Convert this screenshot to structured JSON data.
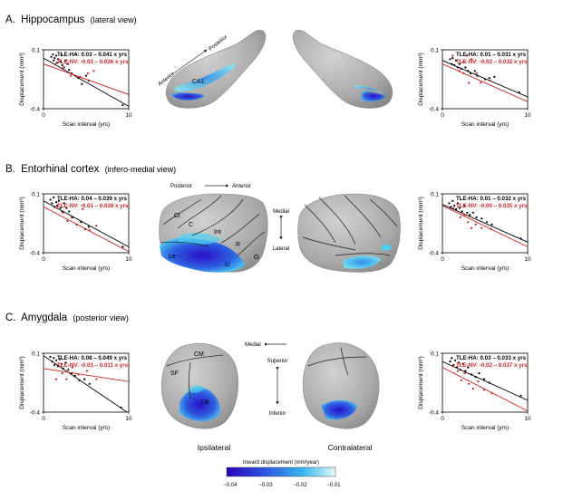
{
  "panels": [
    {
      "letter": "A.",
      "title": "Hippocampus",
      "view": "(lateral view)"
    },
    {
      "letter": "B.",
      "title": "Entorhinal cortex",
      "view": "(infero-medial view)"
    },
    {
      "letter": "C.",
      "title": "Amygdala",
      "view": "(posterior view)"
    }
  ],
  "axes": {
    "ylabel": "Displacement  (mm³)",
    "xlabel": "Scan interval (yrs)"
  },
  "colors": {
    "ha": "#000000",
    "nv": "#d42020"
  },
  "annotations": {
    "hippo_anterior": "Anterior",
    "hippo_posterior": "Posterior",
    "hippo_ca1": "CA1",
    "ent_posterior": "Posterior",
    "ent_anterior": "Anterior",
    "ent_medial": "Medial",
    "ent_lateral": "Lateral",
    "ent_cl": "Cl",
    "ent_c": "C",
    "ent_int": "Int",
    "ent_r": "R",
    "ent_o": "O",
    "ent_le": "Le",
    "ent_li": "Li",
    "amy_medial": "Medial",
    "amy_superior": "Superior",
    "amy_inferior": "Inferior",
    "amy_cm": "CM",
    "amy_sf": "SF",
    "amy_lb": "LB",
    "ipsilateral": "Ipsilateral",
    "contralateral": "Contralateral"
  },
  "colorbar": {
    "title": "Inward displacement (mm/year)",
    "ticks": [
      "−0.04",
      "−0.03",
      "−0.02",
      "−0.01"
    ]
  },
  "chart_data": [
    {
      "type": "scatter",
      "panel": "A",
      "side": "left",
      "xlim": [
        0,
        10
      ],
      "ylim": [
        -0.4,
        0.1
      ],
      "xticks": [
        "0",
        "10"
      ],
      "yticks": [
        "0.1",
        "-0.4"
      ],
      "series": [
        {
          "name": "TLE-HA: 0.03 – 0.041 x yrs",
          "intercept": 0.03,
          "slope": -0.041,
          "points": [
            [
              0.9,
              0.04
            ],
            [
              1.1,
              0.06
            ],
            [
              1.2,
              0.01
            ],
            [
              1.3,
              0.03
            ],
            [
              1.5,
              0.05
            ],
            [
              1.6,
              -0.01
            ],
            [
              1.7,
              0.02
            ],
            [
              2.0,
              0.0
            ],
            [
              2.1,
              0.06
            ],
            [
              2.2,
              -0.03
            ],
            [
              2.4,
              -0.05
            ],
            [
              2.6,
              0.01
            ],
            [
              2.8,
              -0.02
            ],
            [
              3.0,
              -0.07
            ],
            [
              3.3,
              -0.1
            ],
            [
              4.1,
              -0.14
            ],
            [
              4.5,
              -0.19
            ],
            [
              5.0,
              -0.12
            ],
            [
              5.3,
              -0.16
            ],
            [
              9.3,
              -0.37
            ]
          ]
        },
        {
          "name": "TLE-NV: -0.02 – 0.026 x yrs",
          "intercept": -0.02,
          "slope": -0.026,
          "points": [
            [
              1.4,
              -0.02
            ],
            [
              2.3,
              -0.05
            ],
            [
              2.9,
              -0.02
            ],
            [
              3.2,
              -0.12
            ],
            [
              3.8,
              0.06
            ],
            [
              4.3,
              -0.13
            ],
            [
              5.2,
              -0.1
            ],
            [
              5.9,
              -0.08
            ]
          ]
        }
      ]
    },
    {
      "type": "scatter",
      "panel": "A",
      "side": "right",
      "xlim": [
        0,
        10
      ],
      "ylim": [
        -0.4,
        0.1
      ],
      "xticks": [
        "0",
        "10"
      ],
      "yticks": [
        "0.1",
        "-0.4"
      ],
      "series": [
        {
          "name": "TLE-HA: 0.01 – 0.031 x yrs",
          "intercept": 0.01,
          "slope": -0.031,
          "points": [
            [
              0.9,
              0.02
            ],
            [
              1.1,
              -0.02
            ],
            [
              1.2,
              0.03
            ],
            [
              1.4,
              -0.03
            ],
            [
              1.6,
              0.01
            ],
            [
              1.8,
              -0.05
            ],
            [
              2.0,
              -0.02
            ],
            [
              2.2,
              -0.06
            ],
            [
              2.5,
              0.0
            ],
            [
              2.7,
              -0.05
            ],
            [
              3.0,
              -0.08
            ],
            [
              3.3,
              -0.1
            ],
            [
              3.8,
              -0.08
            ],
            [
              4.1,
              -0.12
            ],
            [
              5.0,
              -0.15
            ],
            [
              5.5,
              -0.14
            ],
            [
              6.1,
              -0.13
            ],
            [
              9.0,
              -0.26
            ]
          ]
        },
        {
          "name": "TLE-NV: -0.02 – 0.032 x yrs",
          "intercept": -0.02,
          "slope": -0.032,
          "points": [
            [
              1.2,
              0.05
            ],
            [
              2.0,
              -0.08
            ],
            [
              2.5,
              -0.1
            ],
            [
              2.9,
              0.05
            ],
            [
              3.1,
              -0.18
            ],
            [
              3.4,
              0.02
            ],
            [
              4.0,
              -0.1
            ],
            [
              4.5,
              -0.18
            ],
            [
              5.6,
              -0.16
            ]
          ]
        }
      ]
    },
    {
      "type": "scatter",
      "panel": "B",
      "side": "left",
      "xlim": [
        0,
        10
      ],
      "ylim": [
        -0.4,
        0.1
      ],
      "xticks": [
        "0",
        "10"
      ],
      "yticks": [
        "0.1",
        "-0.4"
      ],
      "series": [
        {
          "name": "TLE-HA: 0.04 – 0.039 x yrs",
          "intercept": 0.04,
          "slope": -0.039,
          "points": [
            [
              0.8,
              0.05
            ],
            [
              1.0,
              0.02
            ],
            [
              1.2,
              0.07
            ],
            [
              1.3,
              -0.01
            ],
            [
              1.5,
              0.03
            ],
            [
              1.6,
              0.0
            ],
            [
              1.8,
              0.04
            ],
            [
              2.0,
              -0.02
            ],
            [
              2.2,
              -0.05
            ],
            [
              2.4,
              0.02
            ],
            [
              2.7,
              -0.02
            ],
            [
              3.0,
              -0.05
            ],
            [
              3.4,
              -0.1
            ],
            [
              3.9,
              -0.16
            ],
            [
              4.4,
              -0.14
            ],
            [
              4.9,
              -0.2
            ],
            [
              5.3,
              -0.18
            ],
            [
              9.3,
              -0.35
            ]
          ]
        },
        {
          "name": "TLE-NV: -0.01 – 0.038 x yrs",
          "intercept": -0.01,
          "slope": -0.038,
          "points": [
            [
              1.6,
              -0.02
            ],
            [
              2.3,
              -0.06
            ],
            [
              2.8,
              -0.13
            ],
            [
              3.3,
              -0.1
            ],
            [
              4.6,
              -0.03
            ],
            [
              5.4,
              -0.21
            ],
            [
              6.2,
              -0.17
            ]
          ]
        }
      ]
    },
    {
      "type": "scatter",
      "panel": "B",
      "side": "right",
      "xlim": [
        0,
        10
      ],
      "ylim": [
        -0.4,
        0.1
      ],
      "xticks": [
        "0",
        "10"
      ],
      "yticks": [
        "0.1",
        "-0.4"
      ],
      "series": [
        {
          "name": "TLE-HA: 0.01 – 0.032 x yrs",
          "intercept": 0.01,
          "slope": -0.032,
          "points": [
            [
              0.8,
              0.02
            ],
            [
              1.0,
              -0.01
            ],
            [
              1.2,
              0.04
            ],
            [
              1.4,
              0.0
            ],
            [
              1.6,
              -0.03
            ],
            [
              1.8,
              0.02
            ],
            [
              2.0,
              -0.02
            ],
            [
              2.3,
              -0.05
            ],
            [
              2.6,
              0.0
            ],
            [
              2.9,
              -0.06
            ],
            [
              3.2,
              -0.08
            ],
            [
              3.6,
              -0.06
            ],
            [
              4.0,
              -0.1
            ],
            [
              4.6,
              -0.11
            ],
            [
              5.2,
              -0.14
            ],
            [
              5.8,
              -0.16
            ],
            [
              9.2,
              -0.28
            ]
          ]
        },
        {
          "name": "TLE-NV: -0.00 – 0.035 x yrs",
          "intercept": 0.0,
          "slope": -0.035,
          "points": [
            [
              1.3,
              -0.02
            ],
            [
              2.1,
              -0.1
            ],
            [
              2.6,
              -0.08
            ],
            [
              3.0,
              -0.14
            ],
            [
              3.4,
              -0.19
            ],
            [
              3.9,
              -0.16
            ],
            [
              4.6,
              -0.19
            ],
            [
              5.7,
              -0.2
            ]
          ]
        }
      ]
    },
    {
      "type": "scatter",
      "panel": "C",
      "side": "left",
      "xlim": [
        0,
        10
      ],
      "ylim": [
        -0.4,
        0.1
      ],
      "xticks": [
        "0",
        "10"
      ],
      "yticks": [
        "0.1",
        "-0.4"
      ],
      "series": [
        {
          "name": "TLE-HA: 0.08 – 0.049 x yrs",
          "intercept": 0.08,
          "slope": -0.049,
          "points": [
            [
              0.8,
              0.07
            ],
            [
              1.0,
              0.03
            ],
            [
              1.2,
              0.06
            ],
            [
              1.3,
              0.0
            ],
            [
              1.5,
              0.04
            ],
            [
              1.7,
              -0.01
            ],
            [
              1.9,
              0.05
            ],
            [
              2.1,
              0.01
            ],
            [
              2.3,
              -0.03
            ],
            [
              2.6,
              0.02
            ],
            [
              2.9,
              -0.04
            ],
            [
              3.3,
              -0.07
            ],
            [
              3.7,
              -0.09
            ],
            [
              4.2,
              -0.13
            ],
            [
              4.8,
              -0.12
            ],
            [
              5.4,
              -0.16
            ],
            [
              9.1,
              -0.36
            ]
          ]
        },
        {
          "name": "TLE-NV: -0.03 – 0.011 x yrs",
          "intercept": -0.03,
          "slope": -0.011,
          "points": [
            [
              1.5,
              -0.12
            ],
            [
              2.2,
              -0.07
            ],
            [
              2.7,
              -0.12
            ],
            [
              3.4,
              -0.02
            ],
            [
              4.1,
              -0.08
            ],
            [
              5.1,
              -0.05
            ],
            [
              6.2,
              -0.12
            ]
          ]
        }
      ]
    },
    {
      "type": "scatter",
      "panel": "C",
      "side": "right",
      "xlim": [
        0,
        10
      ],
      "ylim": [
        -0.4,
        0.1
      ],
      "xticks": [
        "0",
        "10"
      ],
      "yticks": [
        "0.1",
        "-0.4"
      ],
      "series": [
        {
          "name": "TLE-HA: 0.03 – 0.033 x yrs",
          "intercept": 0.03,
          "slope": -0.033,
          "points": [
            [
              0.9,
              0.03
            ],
            [
              1.1,
              0.06
            ],
            [
              1.3,
              0.0
            ],
            [
              1.5,
              0.04
            ],
            [
              1.7,
              -0.02
            ],
            [
              1.9,
              0.02
            ],
            [
              2.1,
              -0.04
            ],
            [
              2.4,
              0.01
            ],
            [
              2.7,
              -0.05
            ],
            [
              3.0,
              -0.02
            ],
            [
              3.4,
              -0.08
            ],
            [
              3.9,
              -0.1
            ],
            [
              4.3,
              -0.07
            ],
            [
              4.9,
              -0.12
            ],
            [
              5.5,
              -0.15
            ],
            [
              9.2,
              -0.26
            ]
          ]
        },
        {
          "name": "TLE-NV: -0.02 – 0.037 x yrs",
          "intercept": -0.02,
          "slope": -0.037,
          "points": [
            [
              1.2,
              -0.01
            ],
            [
              1.8,
              -0.05
            ],
            [
              2.2,
              -0.13
            ],
            [
              2.6,
              -0.07
            ],
            [
              3.1,
              -0.16
            ],
            [
              3.6,
              -0.2
            ],
            [
              4.2,
              -0.14
            ],
            [
              4.9,
              -0.21
            ],
            [
              5.8,
              -0.24
            ]
          ]
        }
      ]
    }
  ]
}
